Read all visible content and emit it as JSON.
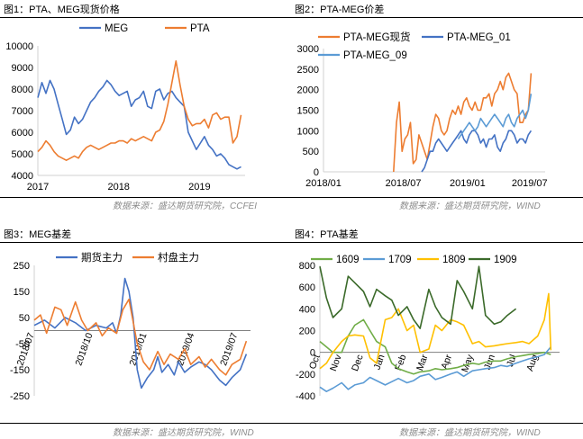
{
  "colors": {
    "blue": "#4472c4",
    "orange": "#ed7d31",
    "lightblue": "#5b9bd5",
    "yellow": "#ffc000",
    "green": "#70ad47",
    "darkgreen": "#3b6a2a",
    "axis": "#d0d0d0",
    "zero": "#7f7f7f"
  },
  "source_text": {
    "c1": "数据来源：盛达期货研究院，CCFEI",
    "c2": "数据来源：盛达期货研究院，WIND",
    "c3": "数据来源：盛达期货研究院，WIND",
    "c4": "数据来源：盛达期货研究院，WIND"
  },
  "chart_data": [
    {
      "type": "line",
      "title": "图1：PTA、MEG现货价格",
      "xlabels": [
        "2017",
        "2018",
        "2019"
      ],
      "xlim": [
        2017.0,
        2019.55
      ],
      "ylim": [
        4000,
        10000
      ],
      "yticks": [
        4000,
        5000,
        6000,
        7000,
        8000,
        9000,
        10000
      ],
      "series": [
        {
          "name": "MEG",
          "color": "blue",
          "x": [
            2017.0,
            2017.05,
            2017.1,
            2017.15,
            2017.2,
            2017.25,
            2017.3,
            2017.35,
            2017.4,
            2017.45,
            2017.5,
            2017.55,
            2017.6,
            2017.65,
            2017.7,
            2017.75,
            2017.8,
            2017.85,
            2017.9,
            2017.95,
            2018.0,
            2018.05,
            2018.1,
            2018.15,
            2018.2,
            2018.25,
            2018.3,
            2018.35,
            2018.4,
            2018.45,
            2018.5,
            2018.55,
            2018.6,
            2018.65,
            2018.7,
            2018.75,
            2018.8,
            2018.85,
            2018.9,
            2018.95,
            2019.0,
            2019.05,
            2019.1,
            2019.15,
            2019.2,
            2019.25,
            2019.3,
            2019.35,
            2019.4,
            2019.45,
            2019.5
          ],
          "y": [
            7600,
            8300,
            7800,
            8400,
            8000,
            7300,
            6600,
            5900,
            6100,
            6700,
            6400,
            6600,
            7000,
            7400,
            7600,
            7900,
            8100,
            8400,
            8200,
            7900,
            7700,
            7800,
            7900,
            7200,
            7500,
            7600,
            7900,
            7200,
            7100,
            7900,
            8000,
            7500,
            7800,
            7900,
            7600,
            7400,
            7200,
            6000,
            5600,
            5200,
            5500,
            5800,
            5400,
            5200,
            4900,
            5000,
            4800,
            4500,
            4400,
            4300,
            4400
          ]
        },
        {
          "name": "PTA",
          "color": "orange",
          "x": [
            2017.0,
            2017.05,
            2017.1,
            2017.15,
            2017.2,
            2017.25,
            2017.3,
            2017.35,
            2017.4,
            2017.45,
            2017.5,
            2017.55,
            2017.6,
            2017.65,
            2017.7,
            2017.75,
            2017.8,
            2017.85,
            2017.9,
            2017.95,
            2018.0,
            2018.05,
            2018.1,
            2018.15,
            2018.2,
            2018.25,
            2018.3,
            2018.35,
            2018.4,
            2018.45,
            2018.5,
            2018.55,
            2018.6,
            2018.65,
            2018.7,
            2018.75,
            2018.8,
            2018.85,
            2018.9,
            2018.95,
            2019.0,
            2019.05,
            2019.1,
            2019.15,
            2019.2,
            2019.25,
            2019.3,
            2019.35,
            2019.4,
            2019.45,
            2019.5
          ],
          "y": [
            5100,
            5300,
            5600,
            5400,
            5100,
            4900,
            4800,
            4700,
            4800,
            4900,
            4800,
            5100,
            5300,
            5400,
            5300,
            5200,
            5300,
            5400,
            5500,
            5500,
            5600,
            5600,
            5500,
            5700,
            5600,
            5700,
            5800,
            5700,
            5600,
            6000,
            6100,
            6500,
            7300,
            8300,
            9300,
            8200,
            7200,
            6600,
            6300,
            6400,
            6400,
            6600,
            6200,
            6800,
            6900,
            6600,
            6700,
            6700,
            5500,
            5800,
            6800
          ]
        }
      ]
    },
    {
      "type": "line",
      "title": "图2：PTA-MEG价差",
      "xlabels": [
        "2018/01",
        "2018/07",
        "2019/01",
        "2019/07"
      ],
      "xlim": [
        2018.0,
        2019.58
      ],
      "ylim": [
        0,
        3000
      ],
      "yticks": [
        0,
        500,
        1000,
        1500,
        2000,
        2500,
        3000
      ],
      "series": [
        {
          "name": "PTA-MEG现货",
          "color": "orange",
          "x": [
            2018.5,
            2018.52,
            2018.54,
            2018.56,
            2018.58,
            2018.6,
            2018.62,
            2018.64,
            2018.66,
            2018.68,
            2018.7,
            2018.72,
            2018.74,
            2018.76,
            2018.78,
            2018.8,
            2018.82,
            2018.84,
            2018.86,
            2018.88,
            2018.9,
            2018.92,
            2018.94,
            2018.96,
            2018.98,
            2019.0,
            2019.02,
            2019.04,
            2019.06,
            2019.08,
            2019.1,
            2019.12,
            2019.14,
            2019.16,
            2019.18,
            2019.2,
            2019.22,
            2019.24,
            2019.26,
            2019.28,
            2019.3,
            2019.32,
            2019.34,
            2019.36,
            2019.38,
            2019.4,
            2019.42,
            2019.44,
            2019.46,
            2019.48
          ],
          "y": [
            0,
            1200,
            1700,
            500,
            800,
            900,
            1200,
            200,
            300,
            900,
            700,
            500,
            300,
            700,
            1100,
            1400,
            1300,
            1000,
            900,
            1000,
            1300,
            1500,
            1400,
            1600,
            1400,
            1700,
            1800,
            1600,
            1500,
            1700,
            1500,
            1500,
            1800,
            1800,
            1900,
            1600,
            1900,
            2000,
            2200,
            2000,
            2300,
            2400,
            2200,
            2000,
            1900,
            1200,
            1200,
            1400,
            1500,
            2400
          ]
        },
        {
          "name": "PTA-MEG_01",
          "color": "blue",
          "x": [
            2018.7,
            2018.72,
            2018.74,
            2018.76,
            2018.78,
            2018.8,
            2018.82,
            2018.84,
            2018.86,
            2018.88,
            2018.9,
            2018.92,
            2018.94,
            2018.96,
            2018.98,
            2019.0,
            2019.02,
            2019.04,
            2019.06,
            2019.08,
            2019.1,
            2019.12,
            2019.14,
            2019.16,
            2019.18,
            2019.2,
            2019.22,
            2019.24,
            2019.26,
            2019.28,
            2019.3,
            2019.32,
            2019.34,
            2019.36,
            2019.38,
            2019.4,
            2019.42,
            2019.44,
            2019.46,
            2019.48
          ],
          "y": [
            0,
            100,
            300,
            500,
            500,
            700,
            800,
            700,
            600,
            500,
            600,
            700,
            800,
            900,
            1000,
            800,
            700,
            900,
            1000,
            1000,
            900,
            700,
            800,
            600,
            800,
            800,
            900,
            600,
            500,
            700,
            800,
            1000,
            1000,
            900,
            700,
            800,
            800,
            700,
            900,
            1000
          ]
        },
        {
          "name": "PTA-MEG_09",
          "color": "lightblue",
          "x": [
            2018.96,
            2018.98,
            2019.0,
            2019.02,
            2019.04,
            2019.06,
            2019.08,
            2019.1,
            2019.12,
            2019.14,
            2019.16,
            2019.18,
            2019.2,
            2019.22,
            2019.24,
            2019.26,
            2019.28,
            2019.3,
            2019.32,
            2019.34,
            2019.36,
            2019.38,
            2019.4,
            2019.42,
            2019.44,
            2019.46,
            2019.48
          ],
          "y": [
            800,
            900,
            1000,
            1100,
            1200,
            1100,
            1000,
            1100,
            1300,
            1200,
            1100,
            1200,
            1300,
            1400,
            1300,
            1200,
            1100,
            1300,
            1400,
            1200,
            1100,
            1300,
            1400,
            1500,
            1300,
            1500,
            1900
          ]
        }
      ]
    },
    {
      "type": "line",
      "title": "图3：MEG基差",
      "xlabels": [
        "2018/07",
        "2018/10",
        "2019/01",
        "2019/04",
        "2019/07"
      ],
      "xlim": [
        2018.5,
        2019.55
      ],
      "ylim": [
        -250,
        250
      ],
      "yticks": [
        -250,
        -150,
        -50,
        50,
        150,
        250
      ],
      "series": [
        {
          "name": "期货主力",
          "color": "blue",
          "x": [
            2018.5,
            2018.55,
            2018.6,
            2018.65,
            2018.7,
            2018.75,
            2018.8,
            2018.85,
            2018.88,
            2018.9,
            2018.92,
            2018.94,
            2018.96,
            2018.98,
            2019.0,
            2019.02,
            2019.05,
            2019.08,
            2019.1,
            2019.12,
            2019.15,
            2019.18,
            2019.2,
            2019.23,
            2019.26,
            2019.3,
            2019.33,
            2019.36,
            2019.4,
            2019.43,
            2019.46,
            2019.5,
            2019.53
          ],
          "y": [
            20,
            40,
            10,
            50,
            30,
            0,
            20,
            10,
            30,
            -10,
            60,
            200,
            150,
            50,
            -150,
            -220,
            -180,
            -150,
            -100,
            -160,
            -130,
            -170,
            -120,
            -160,
            -140,
            -120,
            -130,
            -150,
            -190,
            -210,
            -180,
            -150,
            -90
          ]
        },
        {
          "name": "村盘主力",
          "color": "orange",
          "x": [
            2018.5,
            2018.53,
            2018.56,
            2018.6,
            2018.63,
            2018.66,
            2018.7,
            2018.73,
            2018.76,
            2018.8,
            2018.83,
            2018.86,
            2018.9,
            2018.93,
            2018.96,
            2019.0,
            2019.03,
            2019.06,
            2019.1,
            2019.13,
            2019.16,
            2019.2,
            2019.23,
            2019.26,
            2019.3,
            2019.33,
            2019.36,
            2019.4,
            2019.43,
            2019.46,
            2019.5,
            2019.53
          ],
          "y": [
            40,
            60,
            -10,
            90,
            80,
            20,
            110,
            40,
            0,
            30,
            -20,
            10,
            -10,
            80,
            120,
            -50,
            -120,
            -150,
            -80,
            -130,
            -90,
            -110,
            -70,
            -130,
            -100,
            -140,
            -110,
            -150,
            -170,
            -130,
            -110,
            -40
          ]
        }
      ]
    },
    {
      "type": "line",
      "title": "图4：PTA基差",
      "xlabels": [
        "Oct",
        "Nov",
        "Dec",
        "Jan",
        "Feb",
        "Mar",
        "Apr",
        "May",
        "Jun",
        "Jul",
        "Aug"
      ],
      "xlim": [
        0,
        11
      ],
      "ylim": [
        -400,
        800
      ],
      "yticks": [
        -400,
        -200,
        0,
        200,
        400,
        600,
        800
      ],
      "series": [
        {
          "name": "1609",
          "color": "green",
          "x": [
            0.0,
            0.3,
            0.6,
            1.0,
            1.3,
            1.6,
            2.0,
            2.3,
            2.6,
            3.0,
            3.3,
            3.6,
            4.0,
            4.3,
            4.6,
            5.0,
            5.3,
            5.6,
            6.0,
            6.3,
            6.6,
            7.0,
            7.3,
            7.6,
            8.0,
            8.3,
            8.6,
            9.0,
            9.3,
            9.6,
            10.0,
            10.3,
            10.6
          ],
          "y": [
            100,
            50,
            0,
            0,
            150,
            250,
            300,
            200,
            100,
            50,
            -100,
            -150,
            -180,
            -200,
            -180,
            -170,
            -150,
            -160,
            -150,
            -140,
            -120,
            -100,
            -110,
            -90,
            -80,
            -80,
            -60,
            -40,
            -30,
            -20,
            -10,
            0,
            -20
          ]
        },
        {
          "name": "1709",
          "color": "lightblue",
          "x": [
            0.0,
            0.3,
            0.6,
            1.0,
            1.3,
            1.6,
            2.0,
            2.3,
            2.6,
            3.0,
            3.3,
            3.6,
            4.0,
            4.3,
            4.6,
            5.0,
            5.3,
            5.6,
            6.0,
            6.3,
            6.6,
            7.0,
            7.3,
            7.6,
            8.0,
            8.3,
            8.6,
            9.0,
            9.3,
            9.6,
            10.0,
            10.3,
            10.6
          ],
          "y": [
            -320,
            -360,
            -330,
            -280,
            -340,
            -300,
            -280,
            -230,
            -260,
            -300,
            -270,
            -240,
            -280,
            -260,
            -220,
            -200,
            -250,
            -230,
            -200,
            -180,
            -220,
            -170,
            -160,
            -150,
            -140,
            -120,
            -130,
            -100,
            -80,
            -60,
            -40,
            -20,
            50
          ]
        },
        {
          "name": "1809",
          "color": "yellow",
          "x": [
            0.0,
            0.3,
            0.6,
            1.0,
            1.3,
            1.6,
            2.0,
            2.3,
            2.6,
            3.0,
            3.3,
            3.6,
            4.0,
            4.3,
            4.6,
            5.0,
            5.3,
            5.6,
            6.0,
            6.3,
            6.6,
            7.0,
            7.3,
            7.6,
            8.0,
            8.3,
            8.6,
            9.0,
            9.3,
            9.6,
            10.0,
            10.3,
            10.5,
            10.6
          ],
          "y": [
            -150,
            -100,
            0,
            100,
            150,
            160,
            150,
            -50,
            -100,
            300,
            320,
            400,
            200,
            250,
            0,
            30,
            250,
            200,
            300,
            280,
            250,
            80,
            100,
            50,
            60,
            70,
            80,
            90,
            100,
            80,
            150,
            300,
            540,
            20
          ]
        },
        {
          "name": "1909",
          "color": "darkgreen",
          "x": [
            0.0,
            0.3,
            0.6,
            1.0,
            1.3,
            1.6,
            2.0,
            2.3,
            2.6,
            3.0,
            3.3,
            3.6,
            4.0,
            4.3,
            4.6,
            5.0,
            5.3,
            5.6,
            6.0,
            6.3,
            6.6,
            7.0,
            7.3,
            7.6,
            8.0,
            8.3,
            8.6,
            9.0
          ],
          "y": [
            790,
            500,
            320,
            400,
            700,
            640,
            560,
            420,
            580,
            520,
            480,
            340,
            420,
            300,
            220,
            580,
            420,
            320,
            260,
            660,
            560,
            400,
            790,
            340,
            260,
            280,
            340,
            400
          ]
        }
      ]
    }
  ]
}
